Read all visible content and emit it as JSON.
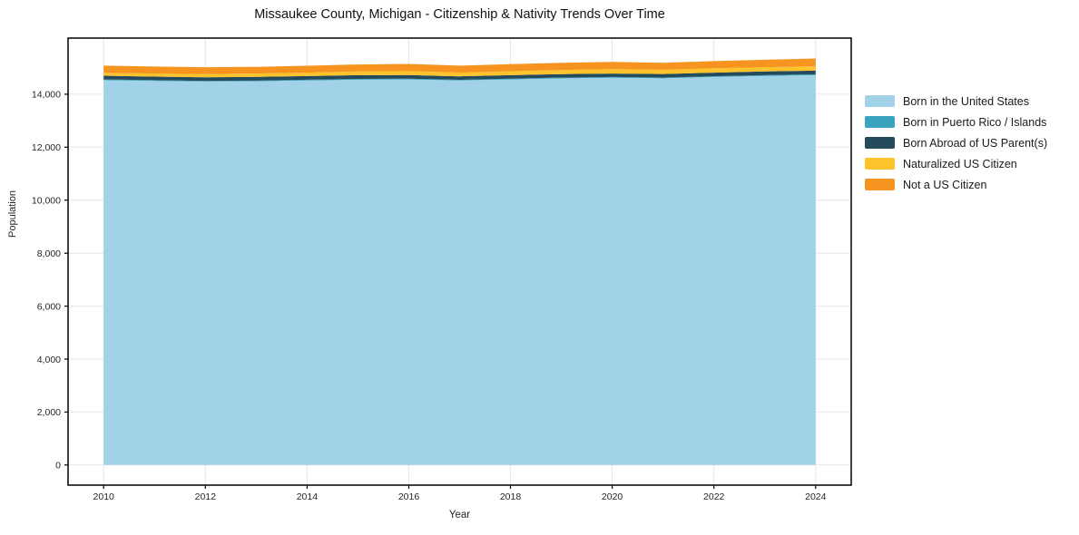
{
  "title": "Missaukee County, Michigan - Citizenship & Nativity Trends Over Time",
  "chart_data": {
    "type": "area",
    "stacked": true,
    "title": "Missaukee County, Michigan - Citizenship & Nativity Trends Over Time",
    "xlabel": "Year",
    "ylabel": "Population",
    "x": [
      2010,
      2011,
      2012,
      2013,
      2014,
      2015,
      2016,
      2017,
      2018,
      2019,
      2020,
      2021,
      2022,
      2023,
      2024
    ],
    "series": [
      {
        "name": "Born in the United States",
        "color": "#A2D2E8",
        "values": [
          14530,
          14500,
          14480,
          14490,
          14520,
          14550,
          14560,
          14520,
          14560,
          14600,
          14620,
          14600,
          14650,
          14690,
          14720
        ]
      },
      {
        "name": "Born in Puerto Rico / Islands",
        "color": "#3AA3BD",
        "values": [
          30,
          30,
          25,
          25,
          30,
          30,
          30,
          25,
          25,
          30,
          30,
          30,
          30,
          30,
          35
        ]
      },
      {
        "name": "Born Abroad of US Parent(s)",
        "color": "#254A5C",
        "values": [
          140,
          135,
          135,
          140,
          135,
          140,
          135,
          130,
          135,
          130,
          130,
          135,
          135,
          140,
          140
        ]
      },
      {
        "name": "Naturalized US Citizen",
        "color": "#FCC32C",
        "values": [
          110,
          115,
          120,
          125,
          130,
          140,
          150,
          145,
          150,
          155,
          165,
          160,
          165,
          160,
          160
        ]
      },
      {
        "name": "Not a US Citizen",
        "color": "#F7941F",
        "values": [
          270,
          265,
          260,
          255,
          260,
          265,
          270,
          260,
          265,
          270,
          275,
          265,
          270,
          280,
          295
        ]
      }
    ],
    "xticks": [
      2010,
      2012,
      2014,
      2016,
      2018,
      2020,
      2022,
      2024
    ],
    "xtick_labels": [
      "2010",
      "2012",
      "2014",
      "2016",
      "2018",
      "2020",
      "2022",
      "2024"
    ],
    "yticks": [
      0,
      2000,
      4000,
      6000,
      8000,
      10000,
      12000,
      14000
    ],
    "ytick_labels": [
      "0",
      "2,000",
      "4,000",
      "6,000",
      "8,000",
      "10,000",
      "12,000",
      "14,000"
    ],
    "xlim": [
      2009.3,
      2024.7
    ],
    "ylim": [
      -760,
      16120
    ],
    "grid": true,
    "legend_position": "right"
  }
}
